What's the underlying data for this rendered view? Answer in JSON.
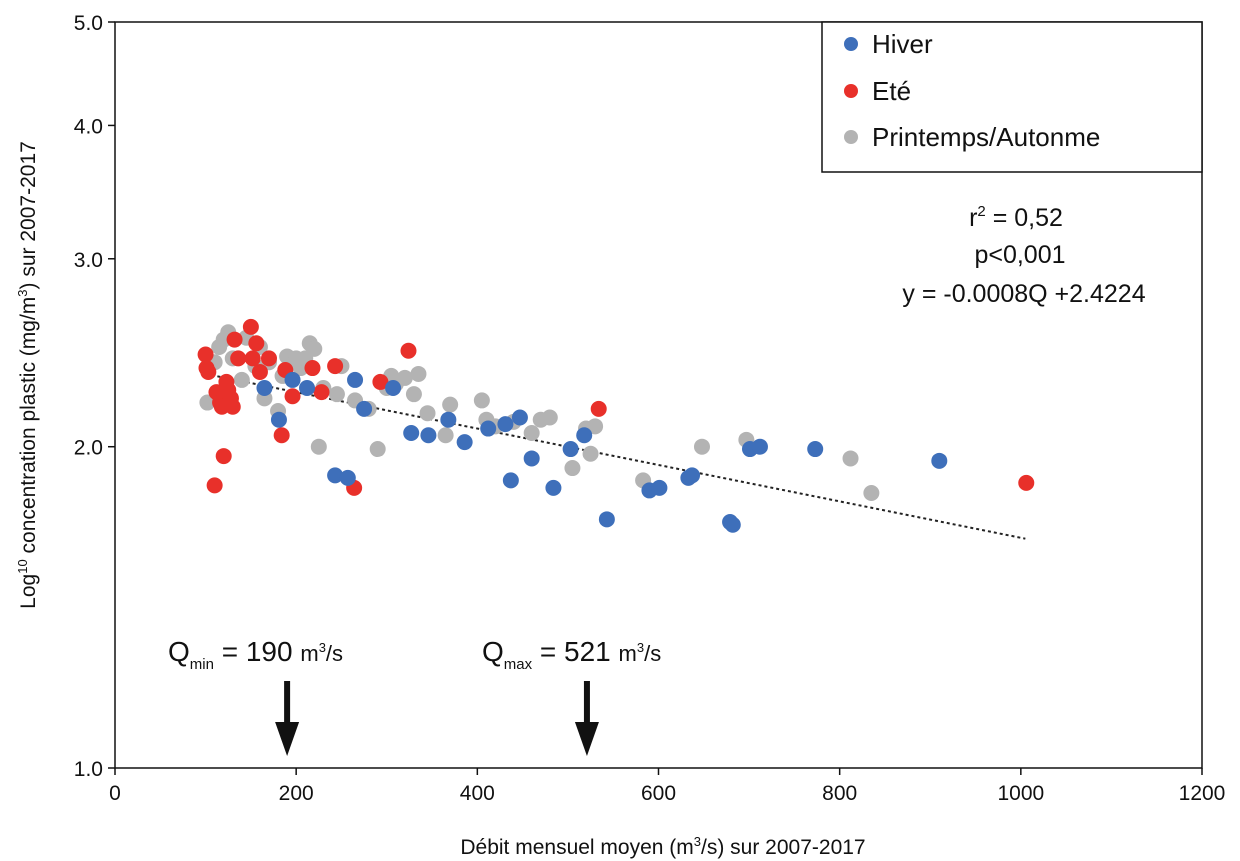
{
  "chart_data": {
    "type": "scatter",
    "title": "",
    "xlabel_main": "Débit mensuel moyen (m",
    "xlabel_sup": "3",
    "xlabel_end": "/s) sur 2007-2017",
    "ylabel_pre": "Log",
    "ylabel_sup1": "10",
    "ylabel_mid": " concentration plastic (mg/m",
    "ylabel_sup2": "3",
    "ylabel_end": ") sur 2007-2017",
    "xlim": [
      0,
      1200
    ],
    "ylim": [
      1.0,
      5.0
    ],
    "y_scale": "log",
    "x_ticks": [
      "0",
      "200",
      "400",
      "600",
      "800",
      "1000",
      "1200"
    ],
    "x_tick_values": [
      0,
      200,
      400,
      600,
      800,
      1000,
      1200
    ],
    "y_ticks": [
      "1.0",
      "2.0",
      "3.0",
      "4.0",
      "5.0"
    ],
    "y_tick_values": [
      1.0,
      2.0,
      3.0,
      4.0,
      5.0
    ],
    "legend_position": "top-right",
    "series": [
      {
        "name": "Hiver",
        "color": "#3e6fba",
        "x": [
          165,
          181,
          196,
          212,
          243,
          257,
          265,
          275,
          307,
          327,
          346,
          368,
          386,
          412,
          431,
          437,
          447,
          460,
          484,
          503,
          518,
          543,
          590,
          601,
          633,
          637,
          679,
          682,
          701,
          712,
          773,
          910
        ],
        "y": [
          2.27,
          2.12,
          2.31,
          2.27,
          1.88,
          1.87,
          2.31,
          2.17,
          2.27,
          2.06,
          2.05,
          2.12,
          2.02,
          2.08,
          2.1,
          1.86,
          2.13,
          1.95,
          1.83,
          1.99,
          2.05,
          1.71,
          1.82,
          1.83,
          1.87,
          1.88,
          1.7,
          1.69,
          1.99,
          2.0,
          1.99,
          1.94
        ]
      },
      {
        "name": "Eté",
        "color": "#e8302a",
        "x": [
          100,
          101,
          103,
          110,
          112,
          116,
          118,
          120,
          123,
          125,
          128,
          130,
          132,
          136,
          150,
          152,
          156,
          160,
          170,
          184,
          188,
          196,
          218,
          228,
          243,
          264,
          293,
          324,
          534,
          1006
        ],
        "y": [
          2.44,
          2.37,
          2.35,
          1.84,
          2.25,
          2.2,
          2.18,
          1.96,
          2.3,
          2.26,
          2.22,
          2.18,
          2.52,
          2.42,
          2.59,
          2.42,
          2.5,
          2.35,
          2.42,
          2.05,
          2.36,
          2.23,
          2.37,
          2.25,
          2.38,
          1.83,
          2.3,
          2.46,
          2.17,
          1.85
        ]
      },
      {
        "name": "Printemps/Autonme",
        "color": "#b3b3b3",
        "x": [
          102,
          110,
          115,
          120,
          125,
          130,
          140,
          145,
          155,
          160,
          165,
          170,
          180,
          185,
          190,
          195,
          200,
          205,
          210,
          215,
          220,
          225,
          230,
          245,
          250,
          265,
          280,
          290,
          300,
          305,
          310,
          320,
          330,
          335,
          345,
          365,
          370,
          405,
          410,
          420,
          440,
          460,
          470,
          480,
          505,
          520,
          525,
          530,
          583,
          648,
          697,
          812,
          835
        ],
        "y": [
          2.2,
          2.4,
          2.48,
          2.52,
          2.56,
          2.42,
          2.31,
          2.53,
          2.38,
          2.48,
          2.22,
          2.4,
          2.16,
          2.33,
          2.43,
          2.41,
          2.42,
          2.37,
          2.42,
          2.5,
          2.47,
          2.0,
          2.27,
          2.24,
          2.38,
          2.21,
          2.17,
          1.99,
          2.27,
          2.33,
          2.29,
          2.32,
          2.24,
          2.34,
          2.15,
          2.05,
          2.19,
          2.21,
          2.12,
          2.09,
          2.11,
          2.06,
          2.12,
          2.13,
          1.91,
          2.08,
          1.97,
          2.09,
          1.86,
          2.0,
          2.03,
          1.95,
          1.81
        ]
      }
    ],
    "trendline": {
      "style": "dotted",
      "color": "#222222",
      "x": [
        100,
        1005
      ],
      "y": [
        2.34,
        1.64
      ]
    },
    "stats": {
      "r2_base": "r",
      "r2_sup": "2",
      "r2_value": " = 0,52",
      "p_value": "p<0,001",
      "equation": "y = -0.0008Q +2.4224"
    },
    "annotations": [
      {
        "base": "Q",
        "sub": "min",
        "value": " = 190 ",
        "unit_pre": "m",
        "unit_sup": "3",
        "unit_post": "/s",
        "arrow_x": 190
      },
      {
        "base": "Q",
        "sub": "max",
        "value": " = 521 ",
        "unit_pre": "m",
        "unit_sup": "3",
        "unit_post": "/s",
        "arrow_x": 521
      }
    ]
  }
}
